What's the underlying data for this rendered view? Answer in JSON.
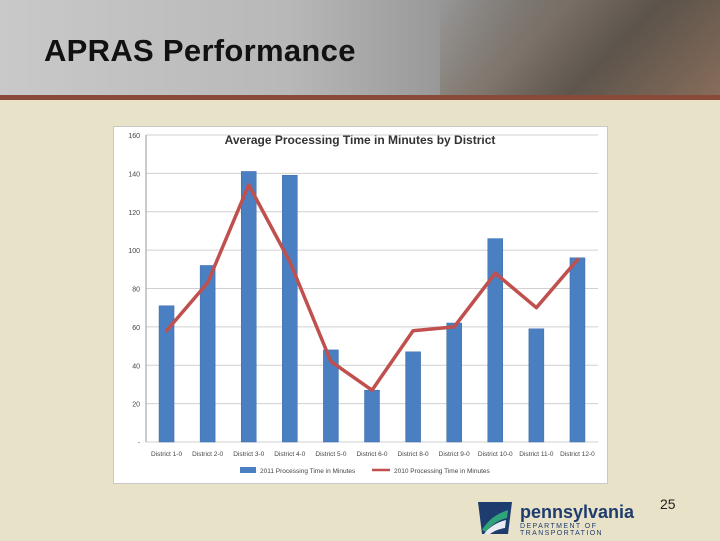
{
  "slide": {
    "title": "APRAS Performance",
    "page_number": "25"
  },
  "logo": {
    "name": "pennsylvania",
    "subtitle": "DEPARTMENT OF TRANSPORTATION"
  },
  "colors": {
    "bar": "#4a7fc1",
    "line": "#c0504d",
    "header_rule": "#8a4a3a",
    "background": "#e8e2c8"
  },
  "chart_data": {
    "type": "bar",
    "title": "Average Processing Time in Minutes by District",
    "categories": [
      "District 1-0",
      "District 2-0",
      "District 3-0",
      "District 4-0",
      "District 5-0",
      "District 6-0",
      "District 8-0",
      "District 9-0",
      "District 10-0",
      "District 11-0",
      "District 12-0"
    ],
    "series": [
      {
        "name": "2011 Processing Time in Minutes",
        "type": "bar",
        "values": [
          71,
          92,
          141,
          139,
          48,
          27,
          47,
          62,
          106,
          59,
          96
        ]
      },
      {
        "name": "2010 Processing Time in Minutes",
        "type": "line",
        "values": [
          58,
          83,
          134,
          94,
          42,
          27,
          58,
          60,
          88,
          70,
          95
        ]
      }
    ],
    "yticks": [
      "-",
      "20",
      "40",
      "60",
      "80",
      "100",
      "120",
      "140",
      "160"
    ],
    "ylim": [
      0,
      160
    ],
    "grid": true,
    "legend": "bottom"
  }
}
